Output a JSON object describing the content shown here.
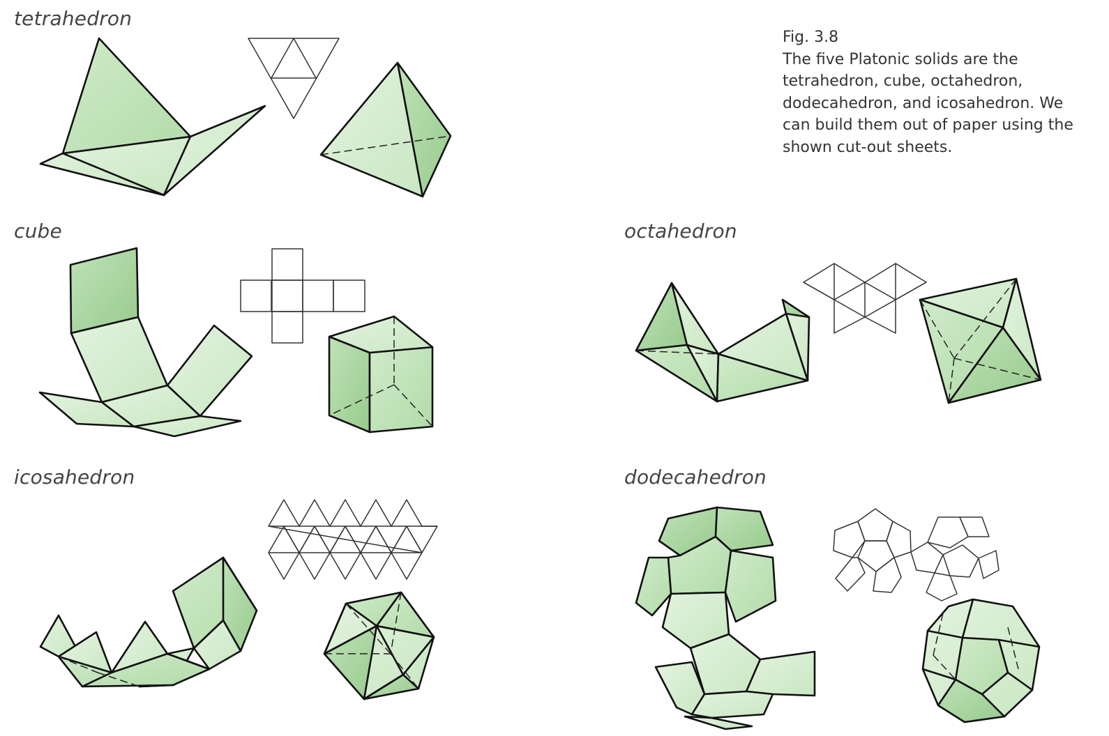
{
  "caption": {
    "fig_number": "Fig. 3.8",
    "lines": [
      "The five Platonic solids are the",
      "tetrahedron, cube, octahedron,",
      "dodecahedron, and icosahedron. We",
      "can build them out of paper using the",
      "shown cut-out sheets."
    ]
  },
  "solids": {
    "tetrahedron": {
      "label": "tetrahedron"
    },
    "cube": {
      "label": "cube"
    },
    "octahedron": {
      "label": "octahedron"
    },
    "icosahedron": {
      "label": "icosahedron"
    },
    "dodecahedron": {
      "label": "dodecahedron"
    }
  },
  "colors": {
    "face_light": "#d9efd4",
    "face_mid": "#c2e3bb",
    "face_dark": "#a7d39e",
    "edge": "#111111",
    "net_line": "#333333",
    "label_text": "#444444"
  }
}
